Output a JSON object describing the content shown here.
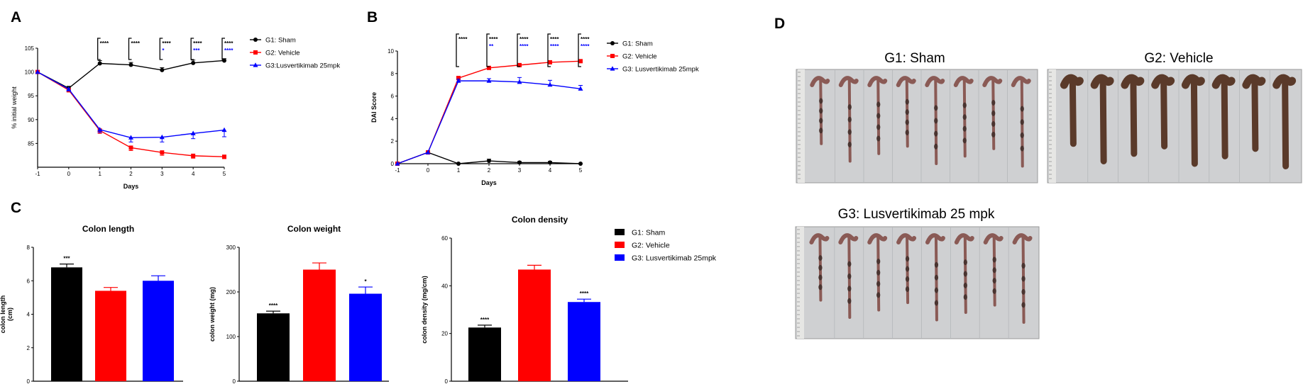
{
  "panels": {
    "A": "A",
    "B": "B",
    "C": "C",
    "D": "D"
  },
  "colors": {
    "sham": "#000000",
    "vehicle": "#ff0000",
    "lus": "#0000ff"
  },
  "chart_data": [
    {
      "id": "A",
      "type": "line",
      "title": "",
      "xlabel": "Days",
      "ylabel": "% initial weight",
      "x": [
        -1,
        0,
        1,
        2,
        3,
        4,
        5
      ],
      "xticks": [
        "-1",
        "0",
        "1",
        "2",
        "3",
        "4",
        "5"
      ],
      "yticks": [
        "85",
        "90",
        "95",
        "100",
        "105"
      ],
      "ylim": [
        80,
        105
      ],
      "legend_position": "top-right",
      "series": [
        {
          "name": "G1: Sham",
          "values": [
            100,
            96.6,
            101.8,
            101.5,
            100.4,
            101.9,
            102.4
          ],
          "err": [
            0,
            0.4,
            0.6,
            0.5,
            0.5,
            0.6,
            0.4
          ],
          "marker": "circle"
        },
        {
          "name": "G2: Vehicle",
          "values": [
            100,
            96.2,
            87.7,
            84.1,
            83.1,
            82.4,
            82.2
          ],
          "err": [
            0,
            0.4,
            0.6,
            0.6,
            0.6,
            0.5,
            0.4
          ],
          "marker": "square"
        },
        {
          "name": "G3:Lusvertikimab 25mpk",
          "values": [
            100,
            96.4,
            87.9,
            86.2,
            86.3,
            87.1,
            87.8
          ],
          "err": [
            0,
            0.4,
            0.6,
            0.9,
            1.0,
            1.1,
            1.4
          ],
          "marker": "triangle"
        }
      ],
      "annotations": [
        {
          "x": 1,
          "rows": [
            {
              "text": "****",
              "color": "#000000"
            },
            {
              "text": "",
              "color": "#0000ff"
            }
          ]
        },
        {
          "x": 2,
          "rows": [
            {
              "text": "****",
              "color": "#000000"
            },
            {
              "text": "",
              "color": "#0000ff"
            }
          ]
        },
        {
          "x": 3,
          "rows": [
            {
              "text": "****",
              "color": "#000000"
            },
            {
              "text": "*",
              "color": "#0000ff"
            }
          ]
        },
        {
          "x": 4,
          "rows": [
            {
              "text": "****",
              "color": "#000000"
            },
            {
              "text": "***",
              "color": "#0000ff"
            }
          ]
        },
        {
          "x": 5,
          "rows": [
            {
              "text": "****",
              "color": "#000000"
            },
            {
              "text": "****",
              "color": "#0000ff"
            }
          ]
        }
      ]
    },
    {
      "id": "B",
      "type": "line",
      "title": "",
      "xlabel": "Days",
      "ylabel": "DAI Score",
      "x": [
        -1,
        0,
        1,
        2,
        3,
        4,
        5
      ],
      "xticks": [
        "-1",
        "0",
        "1",
        "2",
        "3",
        "4",
        "5"
      ],
      "yticks": [
        "0",
        "2",
        "4",
        "6",
        "8",
        "10"
      ],
      "ylim": [
        0,
        10
      ],
      "legend_position": "top-right",
      "series": [
        {
          "name": "G1: Sham",
          "values": [
            0,
            1.0,
            0,
            0.25,
            0.1,
            0.1,
            0
          ],
          "err": [
            0,
            0,
            0,
            0.15,
            0.1,
            0.1,
            0
          ],
          "marker": "circle"
        },
        {
          "name": "G2: Vehicle",
          "values": [
            0,
            1.0,
            7.6,
            8.5,
            8.75,
            9.0,
            9.1
          ],
          "err": [
            0,
            0,
            0.15,
            0.15,
            0.15,
            0.1,
            0.1
          ],
          "marker": "square"
        },
        {
          "name": "G3: Lusvertikimab 25mpk",
          "values": [
            0,
            1.0,
            7.35,
            7.35,
            7.25,
            7.0,
            6.65
          ],
          "err": [
            0,
            0,
            0.15,
            0.2,
            0.4,
            0.4,
            0.3
          ],
          "marker": "triangle"
        }
      ],
      "annotations": [
        {
          "x": 1,
          "rows": [
            {
              "text": "****",
              "color": "#000000"
            },
            {
              "text": "",
              "color": "#0000ff"
            }
          ]
        },
        {
          "x": 2,
          "rows": [
            {
              "text": "****",
              "color": "#000000"
            },
            {
              "text": "**",
              "color": "#0000ff"
            }
          ]
        },
        {
          "x": 3,
          "rows": [
            {
              "text": "****",
              "color": "#000000"
            },
            {
              "text": "****",
              "color": "#0000ff"
            }
          ]
        },
        {
          "x": 4,
          "rows": [
            {
              "text": "****",
              "color": "#000000"
            },
            {
              "text": "****",
              "color": "#0000ff"
            }
          ]
        },
        {
          "x": 5,
          "rows": [
            {
              "text": "****",
              "color": "#000000"
            },
            {
              "text": "****",
              "color": "#0000ff"
            }
          ]
        }
      ]
    },
    {
      "id": "C1",
      "type": "bar",
      "title": "Colon length",
      "ylabel_lines": [
        "colon length",
        "(cm)"
      ],
      "categories": [
        "G1: Sham",
        "G2: Vehicle",
        "G3: Lusvertikimab 25mpk"
      ],
      "values": [
        6.8,
        5.4,
        6.0
      ],
      "err": [
        0.2,
        0.2,
        0.3
      ],
      "stars": [
        "***",
        "",
        ""
      ],
      "yticks": [
        "0",
        "2",
        "4",
        "6",
        "8"
      ],
      "ylim": [
        0,
        8
      ]
    },
    {
      "id": "C2",
      "type": "bar",
      "title": "Colon weight",
      "ylabel_lines": [
        "colon weight (mg)"
      ],
      "categories": [
        "G1: Sham",
        "G2: Vehicle",
        "G3: Lusvertikimab 25mpk"
      ],
      "values": [
        152,
        250,
        196
      ],
      "err": [
        5,
        15,
        15
      ],
      "stars": [
        "****",
        "",
        "*"
      ],
      "yticks": [
        "0",
        "100",
        "200",
        "300"
      ],
      "ylim": [
        0,
        300
      ]
    },
    {
      "id": "C3",
      "type": "bar",
      "title": "Colon density",
      "ylabel_lines": [
        "colon density (mg/cm)"
      ],
      "categories": [
        "G1: Sham",
        "G2: Vehicle",
        "G3: Lusvertikimab 25mpk"
      ],
      "values": [
        22.5,
        46.8,
        33.2
      ],
      "err": [
        1.0,
        1.8,
        1.2
      ],
      "stars": [
        "****",
        "",
        "****"
      ],
      "yticks": [
        "0",
        "20",
        "40",
        "60"
      ],
      "ylim": [
        0,
        60
      ],
      "legend_position": "right",
      "legend": [
        "G1: Sham",
        "G2: Vehicle",
        "G3: Lusvertikimab 25mpk"
      ]
    }
  ],
  "photos": {
    "sham": {
      "title": "G1: Sham",
      "count": 8
    },
    "vehicle": {
      "title": "G2: Vehicle",
      "count": 8
    },
    "lus": {
      "title": "G3: Lusvertikimab 25 mpk",
      "count": 8
    }
  }
}
